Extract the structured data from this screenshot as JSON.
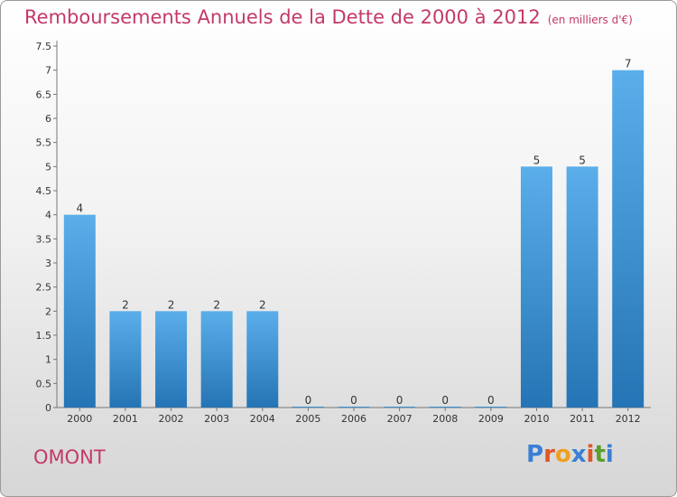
{
  "title": "Remboursements Annuels de la Dette de 2000 à 2012",
  "title_unit": "(en milliers d'€)",
  "commune": "OMONT",
  "logo_text": "Proxiti",
  "logo_colors": [
    "#3a7fd5",
    "#e0572a",
    "#f0a020",
    "#3a7fd5",
    "#e0572a",
    "#5aa02c",
    "#3a7fd5"
  ],
  "colors": {
    "bar_top": "#5aaeea",
    "bar_bottom": "#2574b5",
    "title": "#c4396b"
  },
  "chart_data": {
    "type": "bar",
    "title": "Remboursements Annuels de la Dette de 2000 à 2012",
    "categories": [
      "2000",
      "2001",
      "2002",
      "2003",
      "2004",
      "2005",
      "2006",
      "2007",
      "2008",
      "2009",
      "2010",
      "2011",
      "2012"
    ],
    "values": [
      4,
      2,
      2,
      2,
      2,
      0,
      0,
      0,
      0,
      0,
      5,
      5,
      7
    ],
    "data_labels": [
      "4",
      "2",
      "2",
      "2",
      "2",
      "0",
      "0",
      "0",
      "0",
      "0",
      "5",
      "5",
      "7"
    ],
    "y_ticks": [
      "0",
      "0.5",
      "1",
      "1.5",
      "2",
      "2.5",
      "3",
      "3.5",
      "4",
      "4.5",
      "5",
      "5.5",
      "6",
      "6.5",
      "7",
      "7.5"
    ],
    "ylim": [
      0,
      7.5
    ],
    "grid": false,
    "legend": "none"
  }
}
